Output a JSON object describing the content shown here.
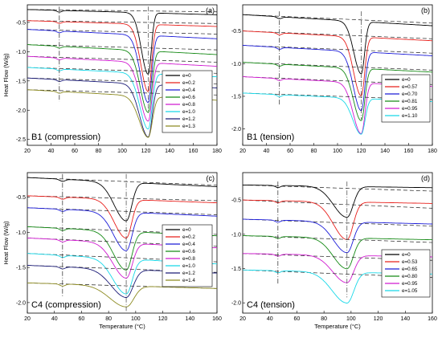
{
  "chart_data": [
    {
      "type": "line",
      "panel_label": "(a)",
      "title": "B1 (compression)",
      "xlabel": "",
      "ylabel": "Heat Flow (W/g)",
      "xlim": [
        20,
        180
      ],
      "ylim": [
        -2.6,
        -0.2
      ],
      "xticks": [
        20,
        40,
        60,
        80,
        100,
        120,
        140,
        160,
        180
      ],
      "xtick_labels": [
        "20",
        "40",
        "60",
        "80",
        "100",
        "120",
        "140",
        "160",
        "180"
      ],
      "yticks": [
        -2.5,
        -2.0,
        -1.5,
        -1.0,
        -0.5
      ],
      "ytick_labels": [
        "-2.5",
        "-2.0",
        "-1.5",
        "-1.0",
        "-0.5"
      ],
      "grid": false,
      "legend_position": "right",
      "marker_x": 47,
      "peak_x": 122,
      "series": [
        {
          "name": "e=0",
          "color": "#000000",
          "y_start": -0.28,
          "y_end": -0.37,
          "tangent_end": -0.32,
          "peak_depth": 1.05,
          "peak_width": 2.6
        },
        {
          "name": "e=0.2",
          "color": "#e8201c",
          "y_start": -0.47,
          "y_end": -0.57,
          "tangent_end": -0.52,
          "peak_depth": 1.15,
          "peak_width": 2.8
        },
        {
          "name": "e=0.4",
          "color": "#1c1cd8",
          "y_start": -0.62,
          "y_end": -0.78,
          "tangent_end": -0.7,
          "peak_depth": 1.15,
          "peak_width": 2.9
        },
        {
          "name": "e=0.6",
          "color": "#168a16",
          "y_start": -0.88,
          "y_end": -1.05,
          "tangent_end": -0.97,
          "peak_depth": 1.05,
          "peak_width": 3.0
        },
        {
          "name": "e=0.8",
          "color": "#d01ad0",
          "y_start": -1.08,
          "y_end": -1.25,
          "tangent_end": -1.18,
          "peak_depth": 1.0,
          "peak_width": 3.1
        },
        {
          "name": "e=1.0",
          "color": "#18d8e8",
          "y_start": -1.27,
          "y_end": -1.43,
          "tangent_end": -1.37,
          "peak_depth": 0.95,
          "peak_width": 3.2
        },
        {
          "name": "e=1.2",
          "color": "#1c1c78",
          "y_start": -1.45,
          "y_end": -1.62,
          "tangent_end": -1.55,
          "peak_depth": 0.9,
          "peak_width": 3.3
        },
        {
          "name": "e=1.3",
          "color": "#8c8a20",
          "y_start": -1.65,
          "y_end": -1.83,
          "tangent_end": -1.74,
          "peak_depth": 0.7,
          "peak_width": 3.4
        }
      ]
    },
    {
      "type": "line",
      "panel_label": "(b)",
      "title": "B1 (tension)",
      "xlabel": "",
      "ylabel": "",
      "xlim": [
        20,
        180
      ],
      "ylim": [
        -2.25,
        -0.1
      ],
      "xticks": [
        20,
        40,
        60,
        80,
        100,
        120,
        140,
        160,
        180
      ],
      "xtick_labels": [
        "20",
        "40",
        "60",
        "80",
        "100",
        "120",
        "140",
        "160",
        "180"
      ],
      "yticks": [
        -2.0,
        -1.5,
        -1.0,
        -0.5
      ],
      "ytick_labels": [
        "-2.0",
        "-1.5",
        "-1.0",
        "-0.5"
      ],
      "grid": false,
      "legend_position": "right",
      "marker_x": 51,
      "peak_x": 120,
      "series": [
        {
          "name": "e=0",
          "color": "#000000",
          "y_start": -0.25,
          "y_end": -0.42,
          "tangent_end": -0.38,
          "peak_depth": 0.8,
          "peak_width": 2.8
        },
        {
          "name": "e=0.57",
          "color": "#e8201c",
          "y_start": -0.5,
          "y_end": -0.65,
          "tangent_end": -0.62,
          "peak_depth": 0.9,
          "peak_width": 2.9
        },
        {
          "name": "e=0.70",
          "color": "#1c1cd8",
          "y_start": -0.72,
          "y_end": -0.88,
          "tangent_end": -0.84,
          "peak_depth": 0.9,
          "peak_width": 3.0
        },
        {
          "name": "e=0.81",
          "color": "#168a16",
          "y_start": -0.98,
          "y_end": -1.13,
          "tangent_end": -1.1,
          "peak_depth": 0.8,
          "peak_width": 3.0
        },
        {
          "name": "e=0.95",
          "color": "#d01ad0",
          "y_start": -1.2,
          "y_end": -1.35,
          "tangent_end": -1.32,
          "peak_depth": 0.78,
          "peak_width": 3.1
        },
        {
          "name": "e=1.10",
          "color": "#18d8e8",
          "y_start": -1.45,
          "y_end": -1.58,
          "tangent_end": -1.55,
          "peak_depth": 0.55,
          "peak_width": 3.2
        }
      ]
    },
    {
      "type": "line",
      "panel_label": "(c)",
      "title": "C4 (compression)",
      "xlabel": "Temperature (°C)",
      "ylabel": "Heat Flow (W/g)",
      "xlim": [
        20,
        160
      ],
      "ylim": [
        -2.15,
        -0.15
      ],
      "xticks": [
        20,
        40,
        60,
        80,
        100,
        120,
        140,
        160
      ],
      "xtick_labels": [
        "20",
        "40",
        "60",
        "80",
        "100",
        "120",
        "140",
        "160"
      ],
      "yticks": [
        -2.0,
        -1.5,
        -1.0,
        -0.5
      ],
      "ytick_labels": [
        "-2.0",
        "-1.5",
        "-1.0",
        "-0.5"
      ],
      "grid": false,
      "legend_position": "right",
      "marker_x": 46,
      "peak_x": 93,
      "series": [
        {
          "name": "e=0",
          "color": "#000000",
          "y_start": -0.22,
          "y_end": -0.35,
          "tangent_end": -0.33,
          "peak_depth": 0.55,
          "peak_width": 4.0
        },
        {
          "name": "e=0.2",
          "color": "#e8201c",
          "y_start": -0.48,
          "y_end": -0.58,
          "tangent_end": -0.55,
          "peak_depth": 0.55,
          "peak_width": 4.0
        },
        {
          "name": "e=0.4",
          "color": "#1c1cd8",
          "y_start": -0.65,
          "y_end": -0.77,
          "tangent_end": -0.75,
          "peak_depth": 0.55,
          "peak_width": 4.2
        },
        {
          "name": "e=0.6",
          "color": "#168a16",
          "y_start": -0.92,
          "y_end": -1.05,
          "tangent_end": -1.03,
          "peak_depth": 0.55,
          "peak_width": 4.2
        },
        {
          "name": "e=0.8",
          "color": "#d01ad0",
          "y_start": -1.08,
          "y_end": -1.22,
          "tangent_end": -1.2,
          "peak_depth": 0.5,
          "peak_width": 4.4
        },
        {
          "name": "e=1.0",
          "color": "#18d8e8",
          "y_start": -1.3,
          "y_end": -1.45,
          "tangent_end": -1.42,
          "peak_depth": 0.5,
          "peak_width": 4.4
        },
        {
          "name": "e=1.2",
          "color": "#1c1c78",
          "y_start": -1.47,
          "y_end": -1.58,
          "tangent_end": -1.57,
          "peak_depth": 0.4,
          "peak_width": 5.0
        },
        {
          "name": "e=1.4",
          "color": "#8c8a20",
          "y_start": -1.72,
          "y_end": -1.8,
          "tangent_end": -1.8,
          "peak_depth": 0.3,
          "peak_width": 5.5
        }
      ]
    },
    {
      "type": "line",
      "panel_label": "(d)",
      "title": "C4 (tension)",
      "xlabel": "Temperature (°C)",
      "ylabel": "",
      "xlim": [
        20,
        160
      ],
      "ylim": [
        -2.15,
        -0.1
      ],
      "xticks": [
        20,
        40,
        60,
        80,
        100,
        120,
        140,
        160
      ],
      "xtick_labels": [
        "20",
        "40",
        "60",
        "80",
        "100",
        "120",
        "140",
        "160"
      ],
      "yticks": [
        -2.0,
        -1.5,
        -1.0,
        -0.5
      ],
      "ytick_labels": [
        "-2.0",
        "-1.5",
        "-1.0",
        "-0.5"
      ],
      "grid": false,
      "legend_position": "right",
      "marker_x": 46,
      "peak_x": 97,
      "series": [
        {
          "name": "e=0",
          "color": "#000000",
          "y_start": -0.28,
          "y_end": -0.32,
          "tangent_end": -0.37,
          "peak_depth": 0.45,
          "peak_width": 4.5
        },
        {
          "name": "e=0.53",
          "color": "#e8201c",
          "y_start": -0.5,
          "y_end": -0.55,
          "tangent_end": -0.62,
          "peak_depth": 0.55,
          "peak_width": 4.5
        },
        {
          "name": "e=0.65",
          "color": "#1c1cd8",
          "y_start": -0.78,
          "y_end": -0.85,
          "tangent_end": -0.88,
          "peak_depth": 0.45,
          "peak_width": 4.5
        },
        {
          "name": "e=0.80",
          "color": "#168a16",
          "y_start": -1.02,
          "y_end": -1.08,
          "tangent_end": -1.12,
          "peak_depth": 0.45,
          "peak_width": 4.6
        },
        {
          "name": "e=0.95",
          "color": "#d01ad0",
          "y_start": -1.28,
          "y_end": -1.33,
          "tangent_end": -1.38,
          "peak_depth": 0.4,
          "peak_width": 4.8
        },
        {
          "name": "e=1.05",
          "color": "#18d8e8",
          "y_start": -1.52,
          "y_end": -1.58,
          "tangent_end": -1.63,
          "peak_depth": 0.45,
          "peak_width": 5.0
        }
      ]
    }
  ]
}
